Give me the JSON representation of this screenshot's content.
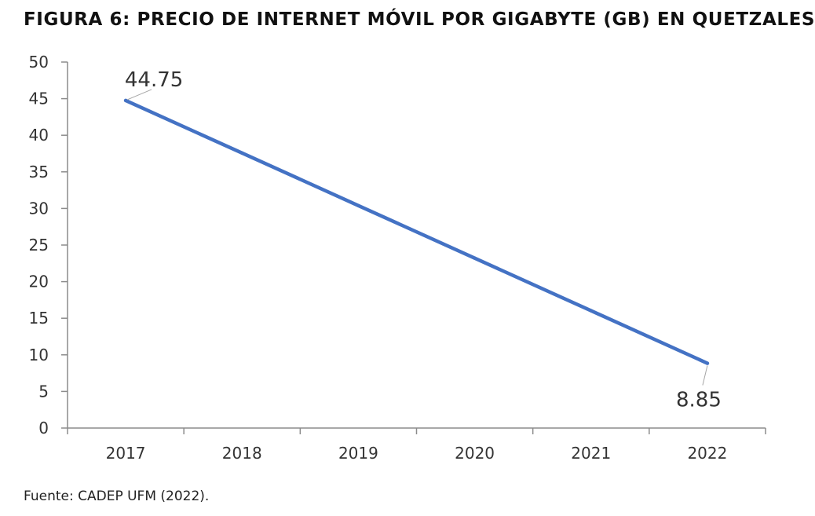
{
  "title": "FIGURA 6: PRECIO DE INTERNET MÓVIL POR GIGABYTE (GB) EN QUETZALES",
  "source": "Fuente: CADEP UFM (2022).",
  "chart_data": {
    "type": "line",
    "title": "FIGURA 6: PRECIO DE INTERNET MÓVIL POR GIGABYTE (GB) EN QUETZALES",
    "xlabel": "",
    "ylabel": "",
    "categories": [
      "2017",
      "2018",
      "2019",
      "2020",
      "2021",
      "2022"
    ],
    "series": [
      {
        "values": [
          44.75,
          37.57,
          30.39,
          23.21,
          16.03,
          8.85
        ],
        "color": "#4472C4"
      }
    ],
    "data_labels": [
      {
        "index": 0,
        "text": "44.75"
      },
      {
        "index": 5,
        "text": "8.85"
      }
    ],
    "ylim": [
      0,
      50
    ],
    "yticks": [
      0,
      5,
      10,
      15,
      20,
      25,
      30,
      35,
      40,
      45,
      50
    ],
    "grid": false,
    "legend": "none"
  }
}
